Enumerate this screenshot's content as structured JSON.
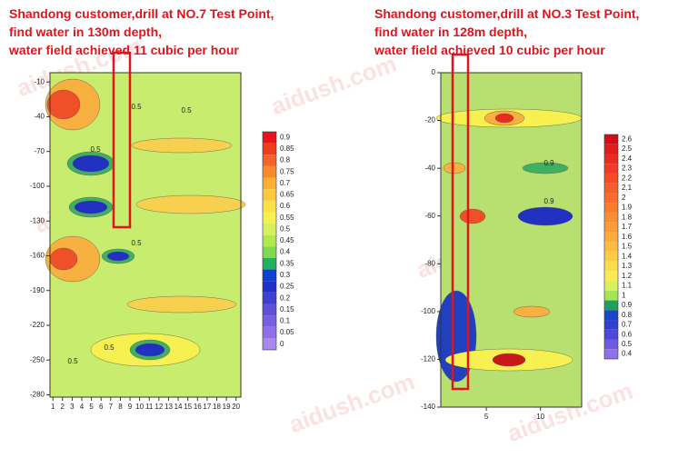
{
  "watermark": "aidush.com",
  "chart_data": [
    {
      "type": "contour",
      "title": [
        "Shandong customer,drill at NO.7 Test Point,",
        "find water in 130m depth,",
        "water field achieved 11 cubic per hour"
      ],
      "xlim": [
        0.7,
        20.5
      ],
      "xticks": [
        1,
        2,
        3,
        4,
        5,
        6,
        7,
        8,
        9,
        10,
        11,
        12,
        13,
        14,
        15,
        16,
        17,
        18,
        19,
        20
      ],
      "ylim": [
        -282,
        -2
      ],
      "yticks": [
        -10,
        -40,
        -70,
        -100,
        -130,
        -160,
        -190,
        -220,
        -250,
        -280
      ],
      "contour_labels": [
        0.5,
        0.5,
        0.5,
        0.5,
        0.5,
        0.5
      ],
      "colorbar": {
        "ticks": [
          0.9,
          0.85,
          0.8,
          0.75,
          0.7,
          0.65,
          0.6,
          0.55,
          0.5,
          0.45,
          0.4,
          0.35,
          0.3,
          0.25,
          0.2,
          0.15,
          0.1,
          0.05,
          0
        ],
        "colors": [
          "#e8141c",
          "#f03c1e",
          "#f46428",
          "#f88c2c",
          "#fbb034",
          "#fdc83c",
          "#fde048",
          "#f6f050",
          "#d8f060",
          "#b0e850",
          "#80d850",
          "#20b060",
          "#1040d0",
          "#2030c8",
          "#4040d0",
          "#6050d8",
          "#7860e0",
          "#9070e8",
          "#a888f0"
        ]
      }
    },
    {
      "type": "contour",
      "title": [
        "Shandong customer,drill at NO.3 Test Point,",
        "find water in 128m depth,",
        "water field achieved 10 cubic per hour"
      ],
      "xlim": [
        0.8,
        13.8
      ],
      "xticks": [
        5,
        10
      ],
      "ylim": [
        -140,
        0
      ],
      "yticks": [
        0,
        -20,
        -40,
        -60,
        -80,
        -100,
        -120,
        -140
      ],
      "contour_labels": [
        0.9,
        0.9
      ],
      "colorbar": {
        "ticks": [
          2.6,
          2.5,
          2.4,
          2.3,
          2.2,
          2.1,
          2,
          1.9,
          1.8,
          1.7,
          1.6,
          1.5,
          1.4,
          1.3,
          1.2,
          1.1,
          1,
          0.9,
          0.8,
          0.7,
          0.6,
          0.5,
          0.4
        ],
        "colors": [
          "#d01018",
          "#e01c1c",
          "#e82c20",
          "#f03c24",
          "#f44c28",
          "#f65c2c",
          "#f86c30",
          "#f87c30",
          "#fa8c34",
          "#fa9c38",
          "#fbac3c",
          "#fcbc40",
          "#fccc44",
          "#fcdc4c",
          "#f8ec54",
          "#d8f060",
          "#a8e458",
          "#20a060",
          "#1848c8",
          "#3040d0",
          "#5048d8",
          "#7058e0",
          "#9070e8"
        ]
      }
    }
  ]
}
